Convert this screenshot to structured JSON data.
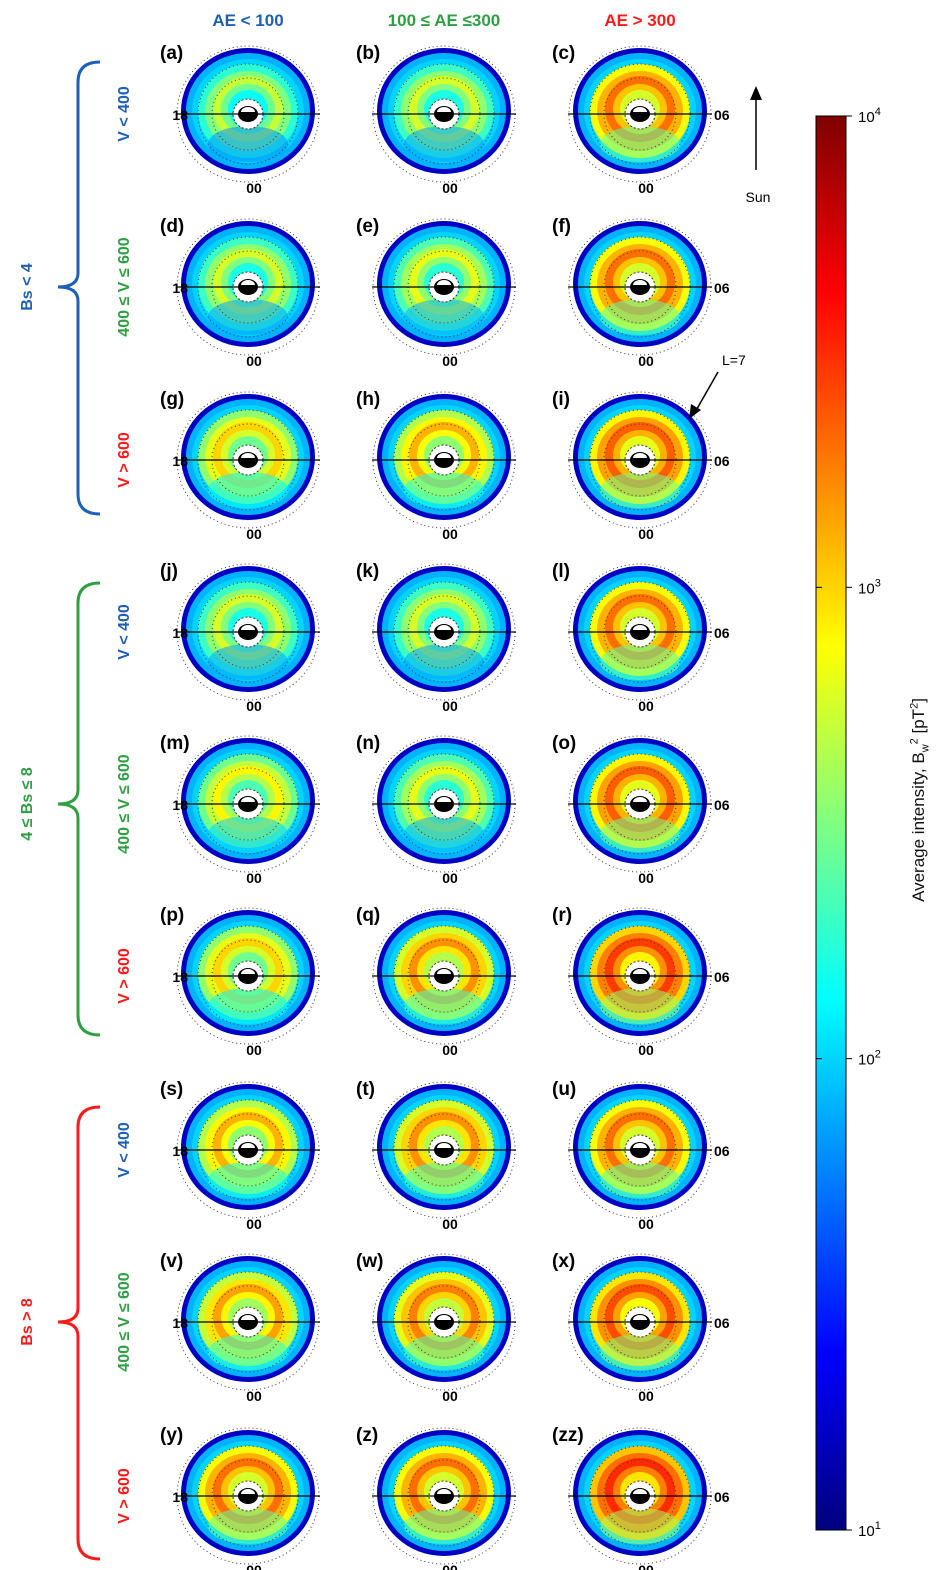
{
  "chart_data": {
    "type": "heatmap",
    "description_hint": "",
    "column_headers": [
      {
        "label": "AE < 100",
        "color": "#1f5fb6"
      },
      {
        "label": "100 ≤ AE ≤300",
        "color": "#2ea043"
      },
      {
        "label": "AE > 300",
        "color": "#ff1a1a"
      }
    ],
    "bs_groups": [
      {
        "label": "Bs < 4",
        "color": "#1f5fb6"
      },
      {
        "label": "4 ≤ Bs ≤ 8",
        "color": "#2ea043"
      },
      {
        "label": "Bs > 8",
        "color": "#ff1a1a"
      }
    ],
    "v_rows": [
      {
        "label": "V < 400",
        "color": "#1f5fb6"
      },
      {
        "label": "400 ≤ V ≤ 600",
        "color": "#2ea043"
      },
      {
        "label": "V > 600",
        "color": "#ff1a1a"
      }
    ],
    "panel_labels": [
      "(a)",
      "(b)",
      "(c)",
      "(d)",
      "(e)",
      "(f)",
      "(g)",
      "(h)",
      "(i)",
      "(j)",
      "(k)",
      "(l)",
      "(m)",
      "(n)",
      "(o)",
      "(p)",
      "(q)",
      "(r)",
      "(s)",
      "(t)",
      "(u)",
      "(v)",
      "(w)",
      "(x)",
      "(y)",
      "(z)",
      "(zz)"
    ],
    "panel_peak_intensity_log10": [
      2.7,
      2.75,
      3.3,
      2.75,
      2.8,
      3.3,
      3.0,
      3.1,
      3.35,
      2.75,
      2.75,
      3.3,
      2.9,
      2.8,
      3.35,
      3.0,
      3.2,
      3.45,
      3.1,
      3.2,
      3.3,
      3.15,
      3.25,
      3.4,
      3.3,
      3.3,
      3.5
    ],
    "mlt_labels": {
      "dusk": "18",
      "dawn": "06",
      "midnight": "00"
    },
    "annotations": {
      "sun": "Sun",
      "lshell": "L=7"
    },
    "colorbar": {
      "title_main": "Average intensity, B",
      "title_sub": "w",
      "title_sup": "2",
      "title_unit": " [pT",
      "title_unit_sup": "2",
      "title_end": "]",
      "scale": "log",
      "range": [
        10,
        10000
      ],
      "ticks": [
        {
          "base": "10",
          "exp": "4",
          "value": 10000
        },
        {
          "base": "10",
          "exp": "3",
          "value": 1000
        },
        {
          "base": "10",
          "exp": "2",
          "value": 100
        },
        {
          "base": "10",
          "exp": "1",
          "value": 10
        }
      ],
      "colormap": "jet"
    }
  }
}
